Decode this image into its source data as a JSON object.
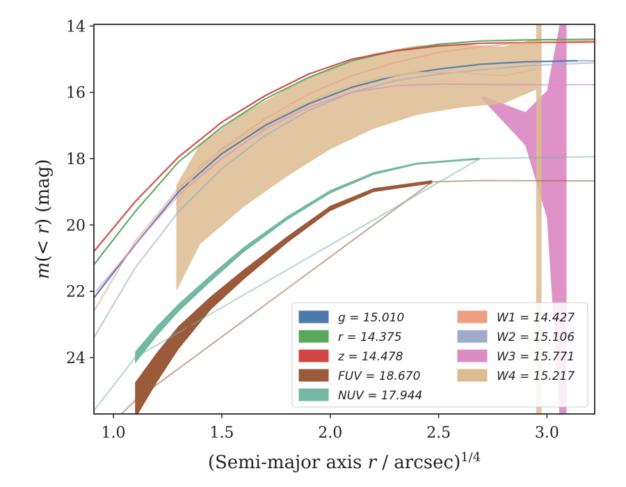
{
  "chart_data": {
    "type": "line",
    "xlabel": "(Semi-major axis r / arcsec)^1/4",
    "ylabel": "m(<r) (mag)",
    "xlim": [
      0.91,
      3.22
    ],
    "ylim": [
      25.7,
      13.95
    ],
    "y_inverted": true,
    "xticks": [
      1.0,
      1.5,
      2.0,
      2.5,
      3.0
    ],
    "xtick_labels": [
      "1.0",
      "1.5",
      "2.0",
      "2.5",
      "3.0"
    ],
    "yticks": [
      14,
      16,
      18,
      20,
      22,
      24
    ],
    "ytick_labels": [
      "14",
      "16",
      "18",
      "20",
      "22",
      "24"
    ],
    "grid": false,
    "legend_position": "bottom-right",
    "series": [
      {
        "name": "g = 15.010",
        "color": "#4c7aad",
        "band": {
          "x": [
            0.91,
            1.1,
            1.3,
            1.5,
            1.7,
            1.9,
            2.1,
            2.3,
            2.5,
            2.7,
            2.9,
            3.14
          ],
          "y": [
            22.2,
            20.6,
            19.0,
            17.85,
            17.0,
            16.35,
            15.85,
            15.5,
            15.3,
            15.15,
            15.08,
            15.05
          ]
        },
        "ext": {
          "x": [
            3.14,
            3.22
          ],
          "y": [
            15.05,
            15.05
          ]
        }
      },
      {
        "name": "r = 14.375",
        "color": "#5aa85a",
        "band": {
          "x": [
            0.91,
            1.1,
            1.3,
            1.5,
            1.7,
            1.9,
            2.1,
            2.3,
            2.5,
            2.7,
            2.9,
            3.22
          ],
          "y": [
            21.2,
            19.6,
            18.1,
            17.05,
            16.2,
            15.55,
            15.05,
            14.75,
            14.55,
            14.45,
            14.42,
            14.4
          ]
        },
        "ext": null
      },
      {
        "name": "z = 14.478",
        "color": "#d14545",
        "band": {
          "x": [
            0.91,
            1.1,
            1.3,
            1.5,
            1.7,
            1.9,
            2.1,
            2.3,
            2.5,
            2.7,
            2.9,
            3.22
          ],
          "y": [
            20.8,
            19.3,
            17.95,
            16.9,
            16.1,
            15.45,
            15.0,
            14.75,
            14.6,
            14.52,
            14.5,
            14.48
          ]
        },
        "ext": null
      },
      {
        "name": "FUV = 18.670",
        "color": "#9b5a3a",
        "band": {
          "x": [
            1.1,
            1.2,
            1.3,
            1.45,
            1.6,
            1.8,
            2.0,
            2.2,
            2.47
          ],
          "y": [
            25.3,
            24.3,
            23.4,
            22.35,
            21.5,
            20.45,
            19.5,
            18.95,
            18.7
          ]
        },
        "ext": {
          "x": [
            0.99,
            1.1,
            2.47,
            2.7,
            3.22
          ],
          "y": [
            26.0,
            25.3,
            18.7,
            18.66,
            18.67
          ]
        }
      },
      {
        "name": "NUV = 17.944",
        "color": "#72b8a2",
        "band": {
          "x": [
            1.1,
            1.2,
            1.3,
            1.45,
            1.6,
            1.8,
            2.0,
            2.2,
            2.4,
            2.69
          ],
          "y": [
            24.0,
            23.2,
            22.5,
            21.6,
            20.75,
            19.8,
            19.0,
            18.45,
            18.15,
            18.0
          ]
        },
        "ext": {
          "x": [
            0.91,
            1.1,
            2.69,
            3.22
          ],
          "y": [
            25.6,
            24.0,
            18.0,
            17.94
          ]
        }
      },
      {
        "name": "W1 = 14.427",
        "color": "#eda081",
        "band": {
          "x": [
            0.91,
            1.1,
            1.3,
            1.5,
            1.7,
            1.9,
            2.1,
            2.3,
            2.5,
            2.7,
            2.9,
            3.22
          ],
          "y": [
            22.6,
            20.5,
            18.9,
            17.7,
            16.8,
            16.05,
            15.5,
            15.1,
            14.8,
            14.62,
            14.5,
            14.43
          ]
        },
        "ext": null
      },
      {
        "name": "W2 = 15.106",
        "color": "#9eabcb",
        "band": {
          "x": [
            0.91,
            1.1,
            1.3,
            1.5,
            1.7,
            1.9,
            2.1,
            2.3,
            2.5,
            2.7,
            2.9,
            3.22
          ],
          "y": [
            23.4,
            21.3,
            19.6,
            18.3,
            17.3,
            16.55,
            16.0,
            15.65,
            15.45,
            15.32,
            15.2,
            15.11
          ]
        },
        "ext": null
      },
      {
        "name": "W3 = 15.771",
        "color": "#dc8cc4",
        "band": {
          "x": [
            0.92,
            1.1,
            1.3,
            1.5,
            1.7,
            1.9,
            2.1,
            2.3,
            2.5,
            2.7,
            2.9,
            3.22
          ],
          "y": [
            22.0,
            20.6,
            19.1,
            18.0,
            17.1,
            16.45,
            16.0,
            15.8,
            15.75,
            15.76,
            15.77,
            15.77
          ]
        },
        "ext": null
      },
      {
        "name": "W4 = 15.217",
        "color": "#dcbc91",
        "band": {
          "x": [
            1.29,
            1.4,
            1.6,
            1.8,
            2.0,
            2.2,
            2.4,
            2.6,
            2.8,
            2.95
          ],
          "y": [
            19.4,
            18.2,
            17.3,
            16.6,
            16.0,
            15.6,
            15.4,
            15.4,
            15.5,
            15.3
          ]
        },
        "ext": null
      }
    ]
  }
}
